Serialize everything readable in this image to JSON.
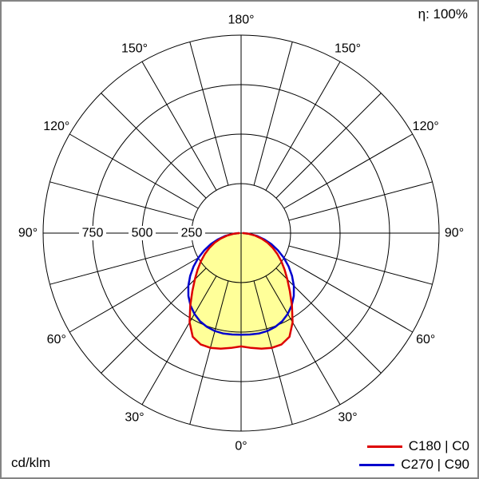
{
  "header": {
    "efficiency": "η: 100%"
  },
  "footer": {
    "unit": "cd/klm"
  },
  "chart_data": {
    "type": "polar-line",
    "unit": "cd/klm",
    "angle_ticks_deg": [
      0,
      30,
      60,
      90,
      120,
      150,
      180
    ],
    "angle_tick_labels": [
      "0°",
      "30°",
      "60°",
      "90°",
      "120°",
      "150°",
      "180°"
    ],
    "radial_ticks": [
      250,
      500,
      750
    ],
    "radial_tick_labels": [
      "250",
      "500",
      "750"
    ],
    "radial_max": 1000,
    "grid_step_deg": 15,
    "grid_color": "#000000",
    "series": [
      {
        "name": "C180 | C0",
        "color": "#dd0000",
        "fill": "#ffff99",
        "symmetric": true,
        "angles_deg": [
          0,
          5,
          10,
          15,
          20,
          25,
          30,
          35,
          40,
          45,
          50,
          55,
          60,
          65,
          70,
          75,
          80,
          85,
          90
        ],
        "values": [
          572,
          582,
          593,
          600,
          598,
          578,
          520,
          448,
          383,
          330,
          287,
          248,
          212,
          177,
          142,
          107,
          72,
          38,
          10
        ]
      },
      {
        "name": "C270 | C90",
        "color": "#0000cd",
        "symmetric": true,
        "angles_deg": [
          0,
          5,
          10,
          15,
          20,
          25,
          30,
          35,
          40,
          45,
          50,
          55,
          60,
          65,
          70,
          75,
          80,
          85,
          90
        ],
        "values": [
          513,
          514,
          515,
          512,
          504,
          491,
          471,
          446,
          414,
          377,
          336,
          293,
          249,
          205,
          162,
          120,
          80,
          42,
          12
        ]
      }
    ]
  }
}
